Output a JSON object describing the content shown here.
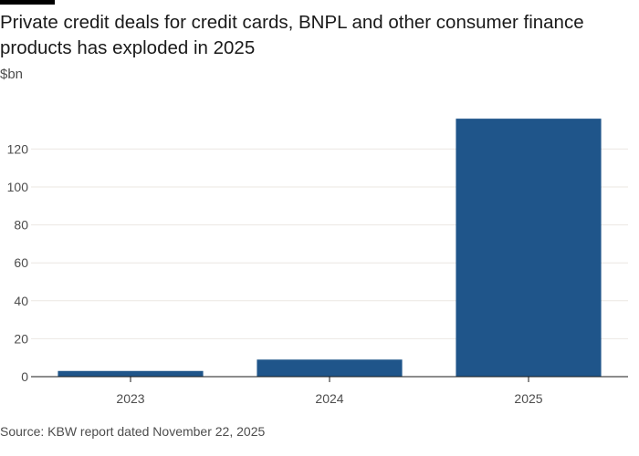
{
  "header": {
    "title": "Private credit deals for credit cards, BNPL and other consumer finance products has exploded in 2025",
    "unit": "$bn"
  },
  "footer": {
    "source": "Source: KBW report dated November 22, 2025"
  },
  "colors": {
    "bar": "#1f558a",
    "grid": "#ebe7e2",
    "axis": "#1a1a1a",
    "tick_text": "#4d4d4d"
  },
  "chart_data": {
    "type": "bar",
    "categories": [
      "2023",
      "2024",
      "2025"
    ],
    "values": [
      3,
      9,
      136
    ],
    "ylabel": "$bn",
    "xlabel": "",
    "ylim": [
      0,
      140
    ],
    "yticks": [
      0,
      20,
      40,
      60,
      80,
      100,
      120
    ],
    "grid": true,
    "title": "Private credit deals for credit cards, BNPL and other consumer finance products has exploded in 2025"
  }
}
